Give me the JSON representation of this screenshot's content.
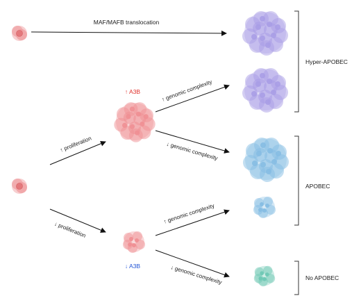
{
  "labels": {
    "translocation": "MAF/MAFB translocation",
    "up_a3b": "↑ A3B",
    "down_a3b": "↓ A3B",
    "up_proliferation": "↑ proliferation",
    "down_proliferation": "↓ proliferation",
    "up_genomic_1": "↑ genomic complexity",
    "down_genomic_1": "↓ genomic complexity",
    "up_genomic_2": "↑ genomic complexity",
    "down_genomic_2": "↓ genomic complexity",
    "hyper_apobec": "Hyper-APOBEC",
    "apobec": "APOBEC",
    "no_apobec": "No APOBEC"
  },
  "colors": {
    "up_a3b": "#e0312b",
    "down_a3b": "#2255d6",
    "red_cell": "#ee9a9c",
    "purple_cell": "#b6acea",
    "blue_cell": "#9ac7e7",
    "teal_cell": "#86d3c1",
    "arrow": "#111111",
    "bracket": "#333333"
  }
}
